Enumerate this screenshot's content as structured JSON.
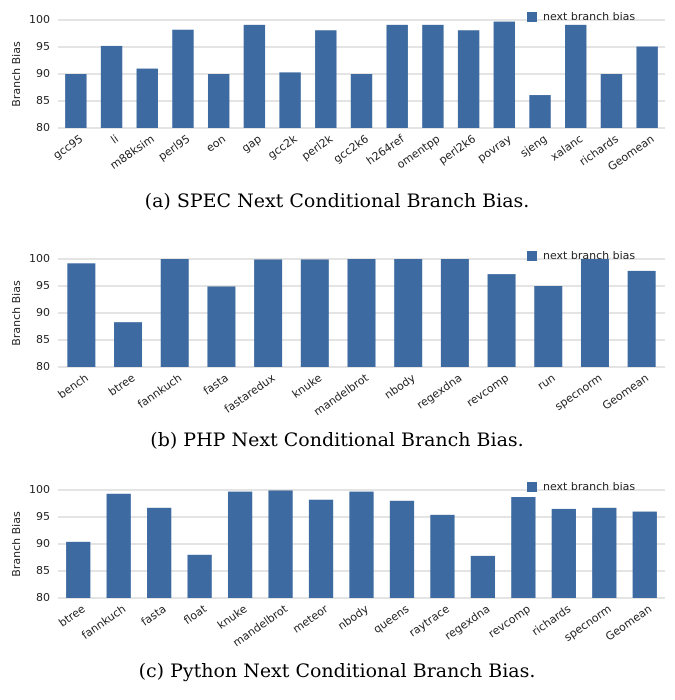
{
  "chart_data": [
    {
      "type": "bar",
      "title": "(a) SPEC Next Conditional Branch Bias.",
      "ylabel": "Branch Bias",
      "categories": [
        "gcc95",
        "li",
        "m88ksim",
        "perl95",
        "eon",
        "gap",
        "gcc2k",
        "perl2k",
        "gcc2k6",
        "h264ref",
        "omentpp",
        "perl2k6",
        "povray",
        "sjeng",
        "xalanc",
        "richards",
        "Geomean"
      ],
      "series": [
        {
          "name": "next branch bias",
          "color": "#3d6aa1",
          "values": [
            90,
            95.2,
            91,
            98.2,
            90,
            99.1,
            90.3,
            98.1,
            90,
            99.1,
            99.1,
            98.1,
            99.7,
            86.1,
            99.1,
            90,
            95.1
          ]
        }
      ],
      "ylim": [
        80,
        100
      ],
      "yticks": [
        80,
        85,
        90,
        95,
        100
      ],
      "grid": true,
      "legend": "top-right"
    },
    {
      "type": "bar",
      "title": "(b) PHP Next Conditional Branch Bias.",
      "ylabel": "Branch Bias",
      "categories": [
        "bench",
        "btree",
        "fannkuch",
        "fasta",
        "fastaredux",
        "knuke",
        "mandelbrot",
        "nbody",
        "regexdna",
        "revcomp",
        "run",
        "specnorm",
        "Geomean"
      ],
      "series": [
        {
          "name": "next branch bias",
          "color": "#3d6aa1",
          "values": [
            99.2,
            88.3,
            100,
            94.9,
            99.9,
            99.9,
            100,
            100,
            100,
            97.2,
            95,
            100,
            97.8
          ]
        }
      ],
      "ylim": [
        80,
        100
      ],
      "yticks": [
        80,
        85,
        90,
        95,
        100
      ],
      "grid": true,
      "legend": "top-right"
    },
    {
      "type": "bar",
      "title": "(c) Python Next Conditional Branch Bias.",
      "ylabel": "Branch Bias",
      "categories": [
        "btree",
        "fannkuch",
        "fasta",
        "float",
        "knuke",
        "mandelbrot",
        "meteor",
        "nbody",
        "queens",
        "raytrace",
        "regexdna",
        "revcomp",
        "richards",
        "specnorm",
        "Geomean"
      ],
      "series": [
        {
          "name": "next branch bias",
          "color": "#3d6aa1",
          "values": [
            90.4,
            99.3,
            96.7,
            88,
            99.7,
            99.9,
            98.2,
            99.7,
            98,
            95.4,
            87.8,
            98.7,
            96.5,
            96.7,
            96
          ]
        }
      ],
      "ylim": [
        80,
        100
      ],
      "yticks": [
        80,
        85,
        90,
        95,
        100
      ],
      "grid": true,
      "legend": "top-right"
    }
  ]
}
